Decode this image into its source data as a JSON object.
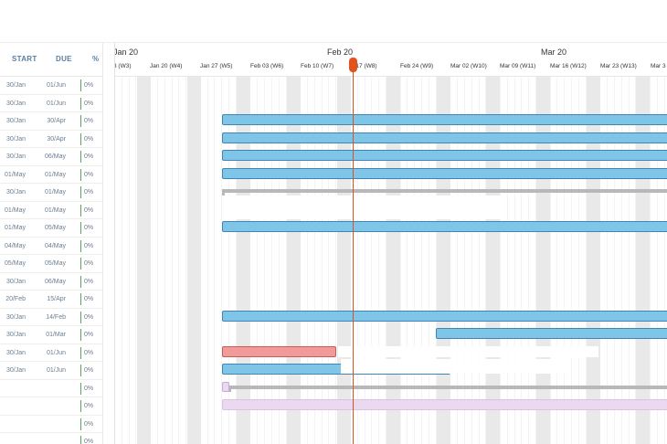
{
  "grid": {
    "headers": {
      "start": "START",
      "due": "DUE",
      "pct": "%"
    },
    "rows": [
      {
        "start": "30/Jan",
        "due": "01/Jun",
        "pct": "0%"
      },
      {
        "start": "30/Jan",
        "due": "01/Jun",
        "pct": "0%"
      },
      {
        "start": "30/Jan",
        "due": "30/Apr",
        "pct": "0%"
      },
      {
        "start": "30/Jan",
        "due": "30/Apr",
        "pct": "0%"
      },
      {
        "start": "30/Jan",
        "due": "06/May",
        "pct": "0%"
      },
      {
        "start": "01/May",
        "due": "01/May",
        "pct": "0%"
      },
      {
        "start": "30/Jan",
        "due": "01/May",
        "pct": "0%"
      },
      {
        "start": "01/May",
        "due": "01/May",
        "pct": "0%"
      },
      {
        "start": "01/May",
        "due": "05/May",
        "pct": "0%"
      },
      {
        "start": "04/May",
        "due": "04/May",
        "pct": "0%"
      },
      {
        "start": "05/May",
        "due": "05/May",
        "pct": "0%"
      },
      {
        "start": "30/Jan",
        "due": "06/May",
        "pct": "0%"
      },
      {
        "start": "20/Feb",
        "due": "15/Apr",
        "pct": "0%"
      },
      {
        "start": "30/Jan",
        "due": "14/Feb",
        "pct": "0%"
      },
      {
        "start": "30/Jan",
        "due": "01/Mar",
        "pct": "0%"
      },
      {
        "start": "30/Jan",
        "due": "01/Jun",
        "pct": "0%"
      },
      {
        "start": "30/Jan",
        "due": "01/Jun",
        "pct": "0%"
      },
      {
        "start": "",
        "due": "",
        "pct": "0%"
      },
      {
        "start": "",
        "due": "",
        "pct": "0%"
      },
      {
        "start": "",
        "due": "",
        "pct": "0%"
      },
      {
        "start": "",
        "due": "",
        "pct": "0%"
      }
    ]
  },
  "timeline": {
    "months": [
      "Jan 20",
      "Feb 20",
      "Mar 20"
    ],
    "weeks": [
      "3 (W3)",
      "Jan 20 (W4)",
      "Jan 27 (W5)",
      "Feb 03 (W6)",
      "Feb 10 (W7)",
      "b 17 (W8)",
      "Feb 24 (W9)",
      "Mar 02 (W10)",
      "Mar 09 (W11)",
      "Mar 16 (W12)",
      "Mar 23 (W13)",
      "Mar 3"
    ]
  },
  "colors": {
    "task_bar": "#7ec5e8",
    "overdue_bar": "#f29a9a",
    "milestone_bar": "#ead9f0",
    "summary_bar": "#b8b8b8",
    "today_marker": "#d9531e",
    "progress_border": "#5aa55a"
  }
}
